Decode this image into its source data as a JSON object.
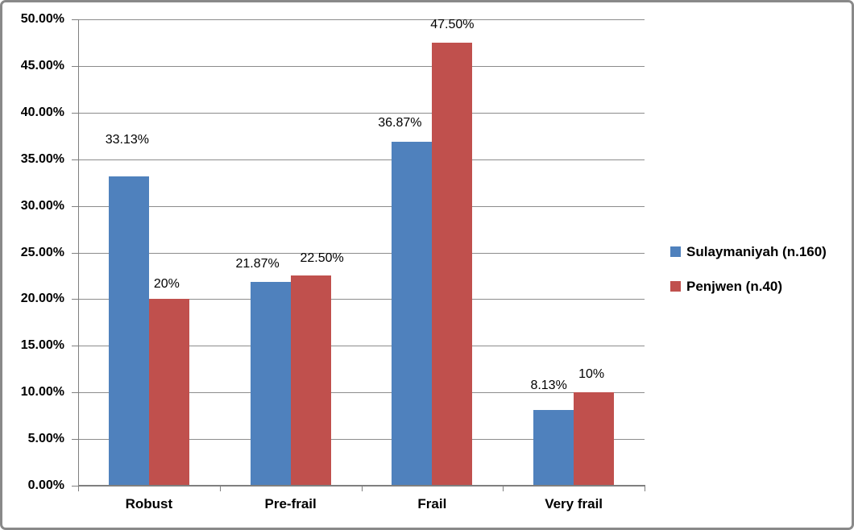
{
  "chart_data": {
    "type": "bar",
    "categories": [
      "Robust",
      "Pre-frail",
      "Frail",
      "Very frail"
    ],
    "series": [
      {
        "name": "Sulaymaniyah (n.160)",
        "color": "#4F81BD",
        "values": [
          33.13,
          21.87,
          36.87,
          8.13
        ],
        "data_labels": [
          "33.13%",
          "21.87%",
          "36.87%",
          "8.13%"
        ]
      },
      {
        "name": "Penjwen (n.40)",
        "color": "#C0504D",
        "values": [
          20,
          22.5,
          47.5,
          10
        ],
        "data_labels": [
          "20%",
          "22.50%",
          "47.50%",
          "10%"
        ]
      }
    ],
    "y_axis": {
      "min": 0,
      "max": 50,
      "step": 5,
      "tick_labels": [
        "0.00%",
        "5.00%",
        "10.00%",
        "15.00%",
        "20.00%",
        "25.00%",
        "30.00%",
        "35.00%",
        "40.00%",
        "45.00%",
        "50.00%"
      ]
    },
    "grid": true,
    "legend_position": "right",
    "layout": {
      "label_gaps": [
        [
          36,
          13,
          14,
          21
        ],
        [
          9,
          12,
          13,
          13
        ]
      ],
      "label_dx": [
        [
          -2,
          -16,
          -15,
          -6
        ],
        [
          -3,
          14,
          0,
          -3
        ]
      ]
    }
  },
  "colors": {
    "gridline": "#8C8C8C",
    "axis": "#7F7F7F",
    "frame_border": "#898989",
    "background": "#FFFFFF",
    "text": "#000000"
  }
}
